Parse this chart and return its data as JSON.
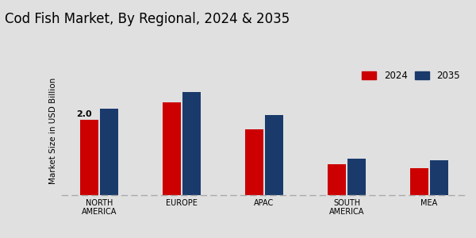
{
  "title": "Cod Fish Market, By Regional, 2024 & 2035",
  "ylabel": "Market Size in USD Billion",
  "categories": [
    "NORTH\nAMERICA",
    "EUROPE",
    "APAC",
    "SOUTH\nAMERICA",
    "MEA"
  ],
  "values_2024": [
    2.0,
    2.45,
    1.75,
    0.82,
    0.72
  ],
  "values_2035": [
    2.28,
    2.72,
    2.12,
    0.97,
    0.92
  ],
  "color_2024": "#cc0000",
  "color_2035": "#1a3a6b",
  "bar_width": 0.22,
  "annotation_text": "2.0",
  "background_color": "#e0e0e0",
  "title_fontsize": 12,
  "legend_labels": [
    "2024",
    "2035"
  ],
  "ylim": [
    0,
    3.4
  ]
}
